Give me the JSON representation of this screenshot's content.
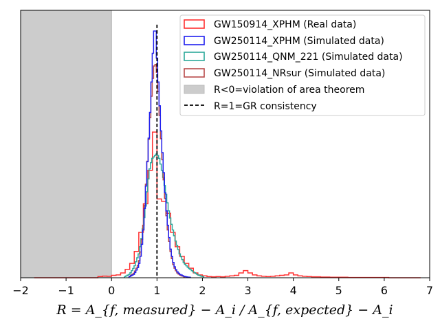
{
  "chart_data": {
    "type": "histogram",
    "title": "",
    "xlabel": "R = A_{f, measured} − A_i / A_{f, expected} − A_i",
    "ylabel": "",
    "xlim": [
      -2,
      7
    ],
    "ylim": [
      0,
      1.12
    ],
    "xticks": [
      -2,
      -1,
      0,
      1,
      2,
      3,
      4,
      5,
      6,
      7
    ],
    "xtick_labels": [
      "−2",
      "−1",
      "0",
      "1",
      "2",
      "3",
      "4",
      "5",
      "6",
      "7"
    ],
    "grid": false,
    "legend_position": "top-right",
    "shaded_region": {
      "label": "R<0=violation of area theorem",
      "x_from": -2,
      "x_to": 0,
      "color": "#cccccc"
    },
    "reference_line": {
      "label": "R=1=GR consistency",
      "x": 1,
      "color": "#000000",
      "style": "dashed"
    },
    "series": [
      {
        "name": "GW150914_XPHM (Real data)",
        "color": "#ff3030",
        "bin_width": 0.1,
        "bins_start": [
          -1.7,
          -1.6,
          -1.5,
          -1.4,
          -1.3,
          -1.2,
          -1.1,
          -1.0,
          -0.9,
          -0.8,
          -0.7,
          -0.6,
          -0.5,
          -0.4,
          -0.3,
          -0.2,
          -0.1,
          0.0,
          0.1,
          0.2,
          0.3,
          0.4,
          0.5,
          0.6,
          0.7,
          0.8,
          0.9,
          1.0,
          1.1,
          1.2,
          1.3,
          1.4,
          1.5,
          1.6,
          1.7,
          1.8,
          1.9,
          2.0,
          2.1,
          2.2,
          2.3,
          2.4,
          2.5,
          2.6,
          2.7,
          2.8,
          2.9,
          3.0,
          3.1,
          3.2,
          3.3,
          3.4,
          3.5,
          3.6,
          3.7,
          3.8,
          3.9,
          4.0,
          4.1,
          4.2,
          4.3,
          4.4,
          4.5,
          4.6,
          4.7,
          4.8,
          4.9,
          5.0,
          5.1,
          5.2,
          5.3,
          5.4,
          5.5,
          5.6,
          5.7,
          5.8,
          5.9,
          6.0,
          6.1,
          6.2,
          6.3,
          6.4,
          6.5,
          6.6,
          6.7
        ],
        "values": [
          0.0,
          0.0,
          0.0,
          0.0,
          0.0,
          0.0,
          0.0,
          0.0,
          0.0,
          0.0,
          0.0,
          0.0,
          0.0,
          0.0,
          0.005,
          0.007,
          0.006,
          0.01,
          0.012,
          0.02,
          0.035,
          0.06,
          0.11,
          0.19,
          0.31,
          0.45,
          0.61,
          0.33,
          0.32,
          0.27,
          0.19,
          0.13,
          0.09,
          0.06,
          0.04,
          0.02,
          0.012,
          0.008,
          0.005,
          0.004,
          0.005,
          0.004,
          0.006,
          0.008,
          0.01,
          0.02,
          0.03,
          0.02,
          0.012,
          0.008,
          0.006,
          0.005,
          0.006,
          0.008,
          0.01,
          0.012,
          0.02,
          0.012,
          0.008,
          0.006,
          0.005,
          0.004,
          0.004,
          0.003,
          0.003,
          0.002,
          0.002,
          0.002,
          0.002,
          0.001,
          0.001,
          0.001,
          0.001,
          0.001,
          0.001,
          0.001,
          0.001,
          0.001,
          0.0,
          0.0,
          0.0,
          0.0,
          0.0,
          0.0,
          0.0
        ]
      },
      {
        "name": "GW250114_XPHM (Simulated data)",
        "color": "#2020ee",
        "bin_width": 0.03,
        "centers": [
          0.4,
          0.5,
          0.6,
          0.65,
          0.7,
          0.75,
          0.8,
          0.84,
          0.88,
          0.92,
          0.95,
          0.98,
          1.0,
          1.03,
          1.06,
          1.1,
          1.15,
          1.2,
          1.25,
          1.3,
          1.35,
          1.4,
          1.45,
          1.5,
          1.6,
          1.7
        ],
        "values": [
          0.005,
          0.015,
          0.05,
          0.1,
          0.2,
          0.35,
          0.52,
          0.65,
          0.82,
          0.98,
          1.06,
          1.02,
          0.92,
          0.82,
          0.72,
          0.58,
          0.44,
          0.3,
          0.2,
          0.12,
          0.07,
          0.04,
          0.025,
          0.015,
          0.006,
          0.002
        ]
      },
      {
        "name": "GW250114_QNM_221 (Simulated data)",
        "color": "#2ca89a",
        "bin_width": 0.03,
        "centers": [
          0.3,
          0.4,
          0.5,
          0.6,
          0.65,
          0.7,
          0.75,
          0.8,
          0.85,
          0.9,
          0.95,
          1.0,
          1.05,
          1.1,
          1.15,
          1.2,
          1.25,
          1.3,
          1.35,
          1.4,
          1.45,
          1.5,
          1.55,
          1.6,
          1.7,
          1.8,
          1.9,
          2.0
        ],
        "values": [
          0.005,
          0.015,
          0.045,
          0.1,
          0.15,
          0.22,
          0.3,
          0.4,
          0.47,
          0.5,
          0.51,
          0.52,
          0.5,
          0.46,
          0.41,
          0.35,
          0.29,
          0.24,
          0.2,
          0.16,
          0.13,
          0.1,
          0.08,
          0.06,
          0.04,
          0.025,
          0.012,
          0.005
        ]
      },
      {
        "name": "GW250114_NRsur (Simulated data)",
        "color": "#b84a4a",
        "bin_width": 0.03,
        "centers": [
          0.4,
          0.5,
          0.6,
          0.65,
          0.7,
          0.75,
          0.8,
          0.84,
          0.88,
          0.92,
          0.95,
          0.98,
          1.0,
          1.03,
          1.06,
          1.1,
          1.15,
          1.2,
          1.25,
          1.3,
          1.35,
          1.4,
          1.45,
          1.5,
          1.6
        ],
        "values": [
          0.006,
          0.02,
          0.06,
          0.12,
          0.22,
          0.36,
          0.52,
          0.64,
          0.76,
          0.86,
          0.9,
          0.89,
          0.86,
          0.78,
          0.68,
          0.55,
          0.41,
          0.28,
          0.18,
          0.11,
          0.06,
          0.035,
          0.02,
          0.012,
          0.004
        ]
      }
    ]
  }
}
